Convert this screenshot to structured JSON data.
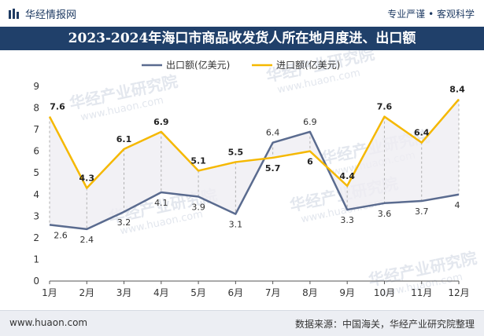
{
  "header": {
    "brand": "华经情报网",
    "tagline": "专业严谨 • 客观科学"
  },
  "footer": {
    "url": "www.huaon.com",
    "source": "数据来源：中国海关，华经产业研究院整理"
  },
  "watermark": {
    "text": "华经产业研究院",
    "url": "www.huaon.com"
  },
  "colors": {
    "export": "#5a6b8f",
    "import": "#f5b800",
    "header_bg": "#20406a"
  },
  "chart_data": {
    "type": "line",
    "title": "2023-2024年海口市商品收发货人所在地月度进、出口额",
    "categories": [
      "1月",
      "2月",
      "3月",
      "4月",
      "5月",
      "6月",
      "7月",
      "8月",
      "9月",
      "10月",
      "11月",
      "12月"
    ],
    "series": [
      {
        "name": "出口额(亿美元)",
        "values": [
          2.6,
          2.4,
          3.2,
          4.1,
          3.9,
          3.1,
          6.4,
          6.9,
          3.3,
          3.6,
          3.7,
          4
        ],
        "color": "#5a6b8f"
      },
      {
        "name": "进口额(亿美元)",
        "values": [
          7.6,
          4.3,
          6.1,
          6.9,
          5.1,
          5.5,
          5.7,
          6,
          4.4,
          7.6,
          6.4,
          8.4
        ],
        "color": "#f5b800"
      }
    ],
    "yticks": [
      "0",
      "1",
      "2",
      "3",
      "4",
      "5",
      "6",
      "7",
      "8",
      "9"
    ],
    "ylim": [
      0,
      9
    ],
    "legend_position": "top-center",
    "grid": false
  }
}
